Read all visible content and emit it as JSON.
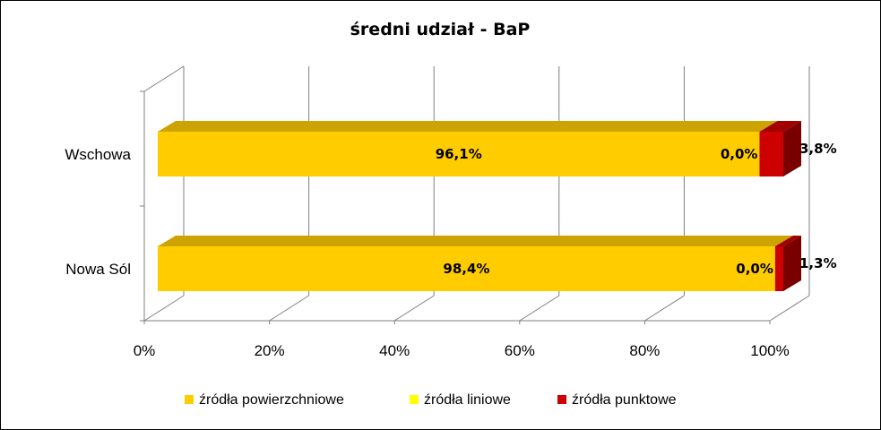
{
  "chart_data": {
    "type": "bar",
    "orientation": "horizontal",
    "stacked": "percent",
    "three_d": true,
    "title": "średni udział - BaP",
    "categories": [
      "Nowa Sól",
      "Wschowa"
    ],
    "series": [
      {
        "name": "źródła powierzchniowe",
        "color": "#FFCC00",
        "values": [
          98.4,
          96.1
        ],
        "labels": [
          "98,4%",
          "96,1%"
        ]
      },
      {
        "name": "źródła liniowe",
        "color": "#FFFF00",
        "values": [
          0.0,
          0.0
        ],
        "labels": [
          "0,0%",
          "0,0%"
        ]
      },
      {
        "name": "źródła punktowe",
        "color": "#CC0000",
        "values": [
          1.3,
          3.8
        ],
        "labels": [
          "1,3%",
          "3,8%"
        ]
      }
    ],
    "x_ticks": [
      "0%",
      "20%",
      "40%",
      "60%",
      "80%",
      "100%"
    ],
    "xlim": [
      0,
      100
    ],
    "grid": true,
    "legend_position": "bottom"
  }
}
